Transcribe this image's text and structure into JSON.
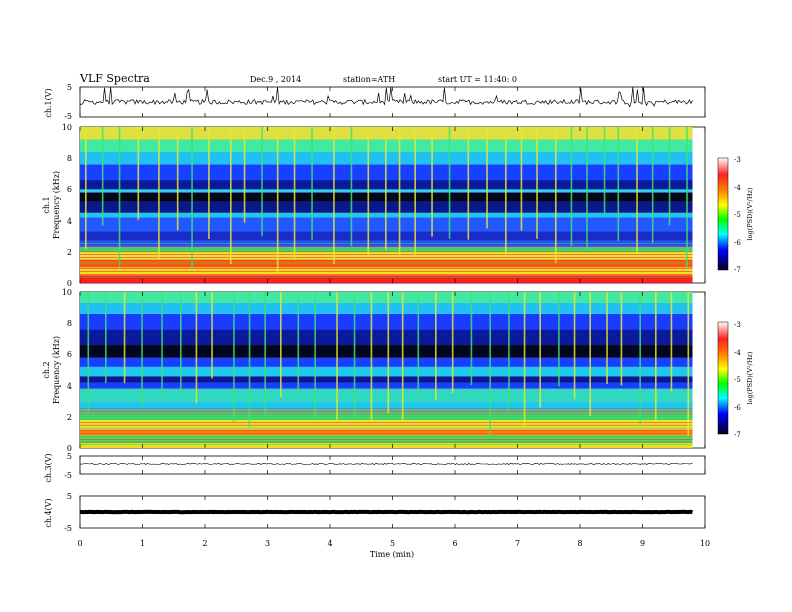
{
  "header": {
    "title": "VLF Spectra",
    "date": "Dec.9 , 2014",
    "station": "station=ATH",
    "start": "start UT = 11:40: 0"
  },
  "chart_data": {
    "type": "heatmap",
    "x_axis": {
      "label": "Time (min)",
      "range": [
        0,
        10
      ],
      "ticks": [
        "0",
        "1",
        "2",
        "3",
        "4",
        "5",
        "6",
        "7",
        "8",
        "9",
        "10"
      ],
      "data_end": 9.8
    },
    "panels": [
      {
        "id": "ch1-waveform",
        "type": "line",
        "ylabel": "ch.1(V)",
        "ylim": [
          -5,
          5
        ],
        "ticks": [
          "5",
          "-5"
        ],
        "baseline": 0
      },
      {
        "id": "ch1-spectrogram",
        "type": "heatmap",
        "ylabel": "Frequency (kHz)",
        "channel": "ch.1",
        "ylim": [
          0,
          10
        ],
        "ticks": [
          "0",
          "2",
          "4",
          "6",
          "8",
          "10"
        ],
        "bands": [
          {
            "from": 0.0,
            "to": 0.5,
            "color": "#ff1a1a"
          },
          {
            "from": 0.5,
            "to": 1.0,
            "color": "#f0e020"
          },
          {
            "from": 1.0,
            "to": 1.5,
            "color": "#ff5a10"
          },
          {
            "from": 1.5,
            "to": 2.0,
            "color": "#e8e830"
          },
          {
            "from": 2.0,
            "to": 2.3,
            "color": "#40d870"
          },
          {
            "from": 2.3,
            "to": 2.7,
            "color": "#2050ff"
          },
          {
            "from": 2.7,
            "to": 3.3,
            "color": "#1a2cc8"
          },
          {
            "from": 3.3,
            "to": 4.2,
            "color": "#2458ff"
          },
          {
            "from": 4.2,
            "to": 4.5,
            "color": "#20c8e8"
          },
          {
            "from": 4.5,
            "to": 5.2,
            "color": "#0a1890"
          },
          {
            "from": 5.2,
            "to": 5.8,
            "color": "#03061f"
          },
          {
            "from": 5.8,
            "to": 6.0,
            "color": "#30d0f0"
          },
          {
            "from": 6.0,
            "to": 6.6,
            "color": "#0a1a9a"
          },
          {
            "from": 6.6,
            "to": 7.6,
            "color": "#1840ff"
          },
          {
            "from": 7.6,
            "to": 8.4,
            "color": "#20c0f0"
          },
          {
            "from": 8.4,
            "to": 9.2,
            "color": "#40e8a0"
          },
          {
            "from": 9.2,
            "to": 10.0,
            "color": "#e0e040"
          }
        ],
        "sferics": [
          0.08,
          0.35,
          0.62,
          0.92,
          1.25,
          1.55,
          1.78,
          2.05,
          2.4,
          2.62,
          2.9,
          3.15,
          3.42,
          3.7,
          4.05,
          4.33,
          4.6,
          4.88,
          5.1,
          5.35,
          5.62,
          5.9,
          6.2,
          6.5,
          6.8,
          7.05,
          7.3,
          7.6,
          7.85,
          8.1,
          8.38,
          8.6,
          8.9,
          9.15,
          9.42,
          9.7
        ]
      },
      {
        "id": "ch2-spectrogram",
        "type": "heatmap",
        "ylabel": "Frequency (kHz)",
        "channel": "ch.2",
        "ylim": [
          0,
          10
        ],
        "ticks": [
          "0",
          "2",
          "4",
          "6",
          "8",
          "10"
        ],
        "bands": [
          {
            "from": 0.0,
            "to": 0.3,
            "color": "#f0e020"
          },
          {
            "from": 0.3,
            "to": 0.8,
            "color": "#40e060"
          },
          {
            "from": 0.8,
            "to": 1.2,
            "color": "#ff8a10"
          },
          {
            "from": 1.2,
            "to": 1.8,
            "color": "#e8e830"
          },
          {
            "from": 1.8,
            "to": 2.4,
            "color": "#40d870"
          },
          {
            "from": 2.4,
            "to": 3.0,
            "color": "#20c8e8"
          },
          {
            "from": 3.0,
            "to": 3.8,
            "color": "#30d8c0"
          },
          {
            "from": 3.8,
            "to": 4.2,
            "color": "#1840ff"
          },
          {
            "from": 4.2,
            "to": 4.6,
            "color": "#0a1890"
          },
          {
            "from": 4.6,
            "to": 5.2,
            "color": "#20c8f0"
          },
          {
            "from": 5.2,
            "to": 5.8,
            "color": "#1840ff"
          },
          {
            "from": 5.8,
            "to": 6.6,
            "color": "#03061f"
          },
          {
            "from": 6.6,
            "to": 7.6,
            "color": "#0a1a9a"
          },
          {
            "from": 7.6,
            "to": 8.6,
            "color": "#1a3cff"
          },
          {
            "from": 8.6,
            "to": 9.3,
            "color": "#20c0f0"
          },
          {
            "from": 9.3,
            "to": 10.0,
            "color": "#40e8a0"
          }
        ],
        "sferics": [
          0.12,
          0.4,
          0.7,
          0.98,
          1.3,
          1.6,
          1.85,
          2.1,
          2.45,
          2.7,
          2.95,
          3.2,
          3.48,
          3.75,
          4.1,
          4.38,
          4.65,
          4.92,
          5.15,
          5.4,
          5.68,
          5.95,
          6.25,
          6.55,
          6.85,
          7.1,
          7.35,
          7.65,
          7.9,
          8.15,
          8.42,
          8.65,
          8.95,
          9.2,
          9.45,
          9.72
        ]
      },
      {
        "id": "ch3-waveform",
        "type": "line",
        "ylabel": "ch.3(V)",
        "ylim": [
          -5,
          5
        ],
        "ticks": [
          "5",
          "-5"
        ],
        "baseline": 0.6
      },
      {
        "id": "ch4-waveform",
        "type": "line",
        "ylabel": "ch.4(V)",
        "ylim": [
          -5,
          5
        ],
        "ticks": [
          "5",
          "-5"
        ],
        "baseline": 0
      }
    ],
    "colorbar": {
      "label": "log(PSD)(V²/Hz)",
      "range": [
        -7,
        -3
      ],
      "ticks": [
        "-3",
        "-4",
        "-5",
        "-6",
        "-7"
      ],
      "colors": [
        "#ffffff",
        "#ff0000",
        "#ff8000",
        "#ffff00",
        "#00ff00",
        "#00ffff",
        "#0000ff",
        "#000040"
      ]
    }
  },
  "colors": {
    "waveform": "#000000"
  }
}
